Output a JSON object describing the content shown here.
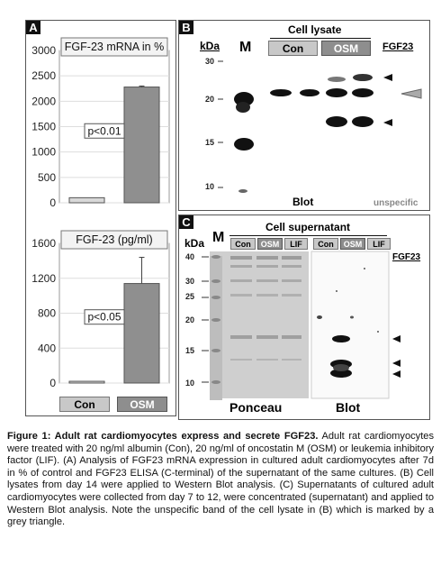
{
  "panelA": {
    "label": "A",
    "chart_top": {
      "type": "bar",
      "title": "FGF-23 mRNA in %",
      "categories": [
        "Con",
        "OSM"
      ],
      "values": [
        100,
        2280
      ],
      "error": [
        0,
        20
      ],
      "ylim": [
        0,
        3000
      ],
      "yticks": [
        "0",
        "500",
        "1000",
        "1500",
        "2000",
        "2500",
        "3000"
      ],
      "annotation": "p<0.01"
    },
    "chart_bottom": {
      "type": "bar",
      "title": "FGF-23 (pg/ml)",
      "categories": [
        "Con",
        "OSM"
      ],
      "values": [
        20,
        1140
      ],
      "error": [
        0,
        300
      ],
      "ylim": [
        0,
        1600
      ],
      "yticks": [
        "0",
        "400",
        "800",
        "1200",
        "1600"
      ],
      "annotation": "p<0.05"
    },
    "legend": {
      "con": "Con",
      "osm": "OSM"
    }
  },
  "chart_data": [
    {
      "type": "bar",
      "title": "FGF-23 mRNA in %",
      "categories": [
        "Con",
        "OSM"
      ],
      "values": [
        100,
        2280
      ],
      "ylim": [
        0,
        3000
      ],
      "grid": true
    },
    {
      "type": "bar",
      "title": "FGF-23 (pg/ml)",
      "categories": [
        "Con",
        "OSM"
      ],
      "values": [
        20,
        1140
      ],
      "ylim": [
        0,
        1600
      ],
      "grid": true
    }
  ],
  "panelB": {
    "label": "B",
    "header": "Cell lysate",
    "kda": "kDa",
    "m": "M",
    "lanes": [
      "Con",
      "OSM"
    ],
    "fgf": "FGF23",
    "markers": [
      "30",
      "20",
      "15",
      "10"
    ],
    "blot": "Blot",
    "unspecific": "unspecific"
  },
  "panelC": {
    "label": "C",
    "header": "Cell supernatant",
    "kda": "kDa",
    "m": "M",
    "lanes": [
      "Con",
      "OSM",
      "LIF"
    ],
    "fgf": "FGF23",
    "markers": [
      "40",
      "30",
      "25",
      "20",
      "15",
      "10"
    ],
    "ponceau": "Ponceau",
    "blot": "Blot"
  },
  "caption": {
    "lead": "Figure 1: Adult rat cardiomyocytes express and secrete FGF23.",
    "body": " Adult rat cardiomyocytes were treated with 20 ng/ml albumin (Con), 20 ng/ml of oncostatin M (OSM) or leukemia inhibitory factor (LIF). (A) Analysis of FGF23 mRNA expression in cultured adult cardiomyocytes after 7d in % of control and FGF23 ELISA (C-terminal) of the supernatant of the same cultures. (B) Cell lysates from day 14 were applied to Western Blot analysis.  (C) Supernatants of cultured adult cardiomyocytes were collected from day 7 to 12, were concentrated (supernatant) and applied to Western Blot analysis.  Note the unspecific band of the cell lysate in (B) which is marked by a grey triangle."
  }
}
